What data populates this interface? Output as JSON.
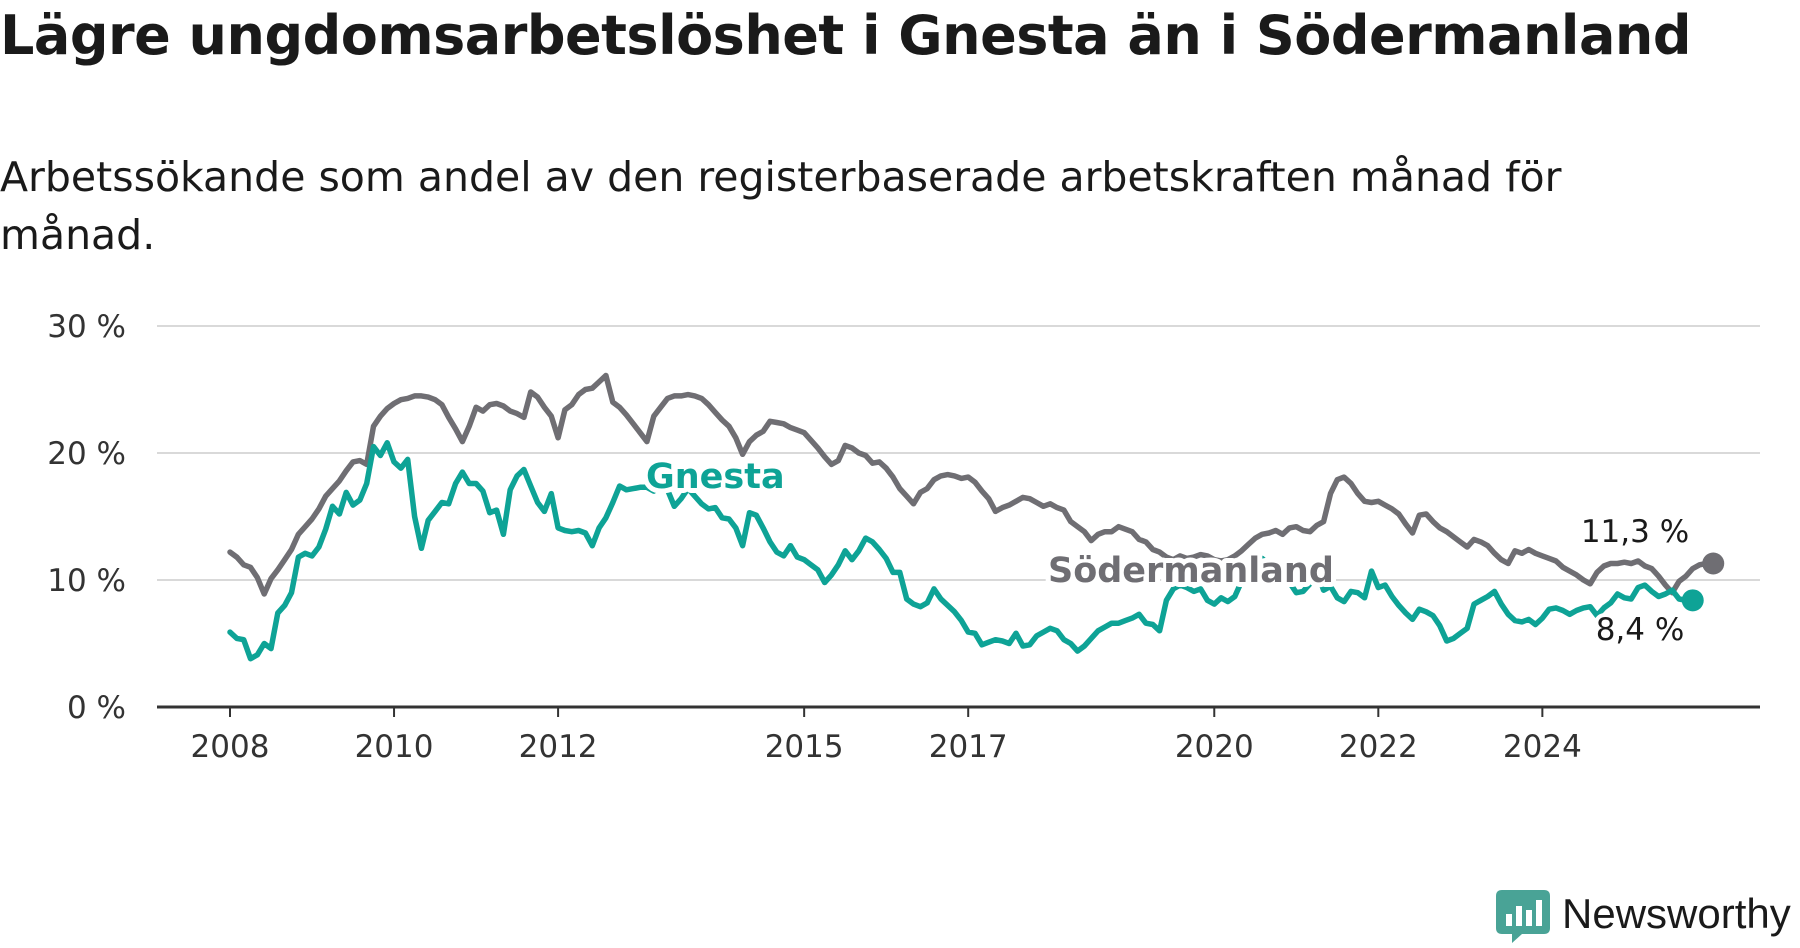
{
  "title": "Lägre ungdomsarbetslöshet i Gnesta än i Södermanland",
  "subtitle": "Arbetssökande som andel av den registerbaserade arbetskraften månad för månad.",
  "logo": {
    "text": "Newsworthy",
    "icon": "bar-chart-logo-icon",
    "color": "#49a396"
  },
  "chart_data": {
    "type": "line",
    "ylim": [
      0,
      30
    ],
    "y_ticks": [
      0,
      10,
      20,
      30
    ],
    "y_tick_labels": [
      "0 %",
      "10 %",
      "20 %",
      "30 %"
    ],
    "x_ticks": [
      2008,
      2010,
      2012,
      2015,
      2017,
      2020,
      2022,
      2024
    ],
    "x_tick_labels": [
      "2008",
      "2010",
      "2012",
      "2015",
      "2017",
      "2020",
      "2022",
      "2024"
    ],
    "grid": true,
    "legend": "inline labels",
    "x_start": 2008.0,
    "x_step": 0.0833333,
    "series": [
      {
        "name": "Södermanland",
        "color": "#6f6e73",
        "end_label": "11,3 %",
        "values": [
          12.2,
          11.8,
          11.2,
          11.0,
          10.2,
          8.9,
          10.1,
          10.8,
          11.6,
          12.4,
          13.6,
          14.2,
          14.8,
          15.6,
          16.6,
          17.2,
          17.8,
          18.6,
          19.3,
          19.4,
          19.1,
          22.1,
          22.9,
          23.5,
          23.9,
          24.2,
          24.3,
          24.5,
          24.5,
          24.4,
          24.2,
          23.8,
          22.8,
          21.9,
          20.9,
          22.1,
          23.6,
          23.3,
          23.8,
          23.9,
          23.7,
          23.3,
          23.1,
          22.8,
          24.8,
          24.4,
          23.6,
          22.9,
          21.2,
          23.4,
          23.8,
          24.6,
          25.0,
          25.1,
          25.6,
          26.1,
          24.0,
          23.6,
          23.0,
          22.3,
          21.6,
          20.9,
          22.9,
          23.6,
          24.3,
          24.5,
          24.5,
          24.6,
          24.5,
          24.3,
          23.8,
          23.2,
          22.6,
          22.1,
          21.2,
          19.9,
          20.9,
          21.4,
          21.7,
          22.5,
          22.4,
          22.3,
          22.0,
          21.8,
          21.6,
          21.0,
          20.4,
          19.7,
          19.1,
          19.4,
          20.6,
          20.4,
          20.0,
          19.8,
          19.2,
          19.3,
          18.8,
          18.1,
          17.2,
          16.6,
          16.0,
          16.9,
          17.2,
          17.9,
          18.2,
          18.3,
          18.2,
          18.0,
          18.1,
          17.7,
          17.0,
          16.4,
          15.4,
          15.7,
          15.9,
          16.2,
          16.5,
          16.4,
          16.1,
          15.8,
          16.0,
          15.7,
          15.5,
          14.6,
          14.2,
          13.8,
          13.1,
          13.6,
          13.8,
          13.8,
          14.2,
          14.0,
          13.8,
          13.2,
          13.0,
          12.4,
          12.2,
          11.8,
          11.6,
          11.9,
          11.7,
          11.8,
          12.0,
          11.9,
          11.6,
          11.5,
          11.6,
          11.9,
          12.3,
          12.8,
          13.3,
          13.6,
          13.7,
          13.9,
          13.6,
          14.1,
          14.2,
          13.9,
          13.8,
          14.3,
          14.6,
          16.8,
          17.9,
          18.1,
          17.6,
          16.8,
          16.2,
          16.1,
          16.2,
          15.9,
          15.6,
          15.2,
          14.4,
          13.7,
          15.1,
          15.2,
          14.6,
          14.1,
          13.8,
          13.4,
          13.0,
          12.6,
          13.2,
          13.0,
          12.7,
          12.1,
          11.6,
          11.3,
          12.3,
          12.1,
          12.4,
          12.1,
          11.9,
          11.7,
          11.5,
          11.0,
          10.7,
          10.4,
          10.0,
          9.7,
          10.6,
          11.1,
          11.3,
          11.3,
          11.4,
          11.3,
          11.5,
          11.1,
          10.9,
          10.3,
          9.6,
          9.0,
          9.9,
          10.3,
          10.9,
          11.2,
          11.3,
          11.3
        ]
      },
      {
        "name": "Gnesta",
        "color": "#0ea396",
        "end_label": "8,4 %",
        "values": [
          5.9,
          5.4,
          5.3,
          3.8,
          4.1,
          5.0,
          4.6,
          7.4,
          8.0,
          9.0,
          11.8,
          12.1,
          11.9,
          12.6,
          14.0,
          15.8,
          15.2,
          16.9,
          15.9,
          16.3,
          17.6,
          20.5,
          19.8,
          20.8,
          19.3,
          18.8,
          19.5,
          15.0,
          12.5,
          14.7,
          15.4,
          16.1,
          16.0,
          17.6,
          18.5,
          17.6,
          17.6,
          17.0,
          15.3,
          15.5,
          13.6,
          17.1,
          18.2,
          18.7,
          17.4,
          16.1,
          15.4,
          16.8,
          14.1,
          13.9,
          13.8,
          13.9,
          13.7,
          12.7,
          14.1,
          14.9,
          16.1,
          17.4,
          17.1,
          17.2,
          17.3,
          17.3,
          17.0,
          17.5,
          17.1,
          15.8,
          16.4,
          17.2,
          16.6,
          16.0,
          15.6,
          15.7,
          14.9,
          14.8,
          14.1,
          12.7,
          15.3,
          15.1,
          14.1,
          13.0,
          12.2,
          11.9,
          12.7,
          11.8,
          11.6,
          11.2,
          10.8,
          9.8,
          10.4,
          11.2,
          12.3,
          11.6,
          12.3,
          13.3,
          13.0,
          12.4,
          11.7,
          10.6,
          10.6,
          8.5,
          8.1,
          7.9,
          8.2,
          9.3,
          8.5,
          8.0,
          7.5,
          6.8,
          5.9,
          5.8,
          4.9,
          5.1,
          5.3,
          5.2,
          5.0,
          5.8,
          4.8,
          4.9,
          5.6,
          5.9,
          6.2,
          6.0,
          5.3,
          5.0,
          4.4,
          4.8,
          5.4,
          6.0,
          6.3,
          6.6,
          6.6,
          6.8,
          7.0,
          7.3,
          6.6,
          6.5,
          6.0,
          8.4,
          9.3,
          9.6,
          9.4,
          9.1,
          9.3,
          8.4,
          8.1,
          8.6,
          8.3,
          8.7,
          9.9,
          11.2,
          11.5,
          11.7,
          11.2,
          11.0,
          10.4,
          9.8,
          9.0,
          9.1,
          9.7,
          10.7,
          9.2,
          9.5,
          8.6,
          8.3,
          9.1,
          9.0,
          8.6,
          10.7,
          9.4,
          9.6,
          8.7,
          8.0,
          7.4,
          6.9,
          7.7,
          7.5,
          7.2,
          6.4,
          5.2,
          5.4,
          5.8,
          6.2,
          8.1,
          8.4,
          8.7,
          9.1,
          8.1,
          7.3,
          6.8,
          6.7,
          6.9,
          6.5,
          7.0,
          7.7,
          7.8,
          7.6,
          7.3,
          7.6,
          7.8,
          7.9,
          7.2,
          7.8,
          8.2,
          8.9,
          8.6,
          8.5,
          9.4,
          9.6,
          9.1,
          8.7,
          8.9,
          9.2,
          8.5,
          8.4,
          8.4
        ]
      }
    ]
  }
}
